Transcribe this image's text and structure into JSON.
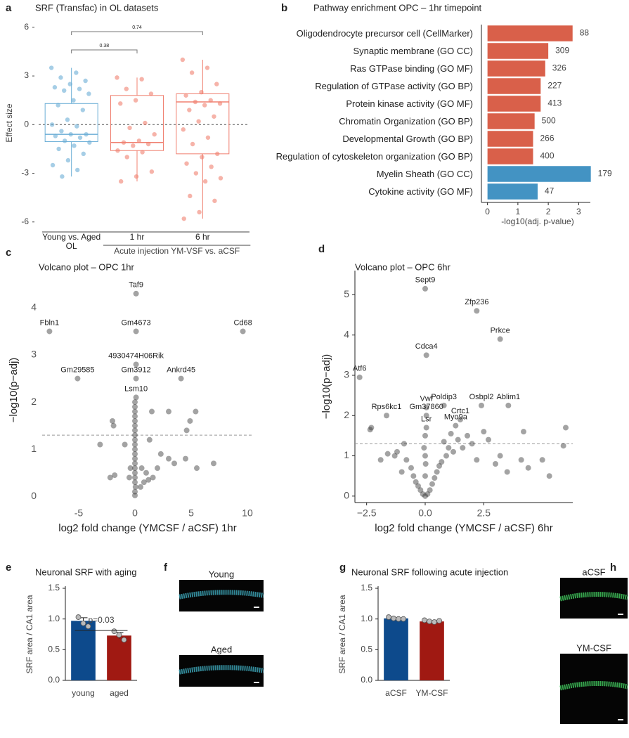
{
  "chart_data": [
    {
      "panel": "a",
      "type": "box",
      "title": "SRF (Transfac) in OL datasets",
      "ylabel": "Effect size",
      "categories": [
        "Young vs. Aged OL",
        "1 hr",
        "6 hr"
      ],
      "group_label": "Acute injection YM-VSF vs. aCSF",
      "group": [
        1,
        2
      ],
      "colors": [
        "#6baed6",
        "#f08070",
        "#f08070"
      ],
      "boxes": [
        {
          "whislo": -3.2,
          "q1": -1.05,
          "med": -0.6,
          "q3": 1.3,
          "whishi": 3.5
        },
        {
          "whislo": -3.5,
          "q1": -1.6,
          "med": -1.1,
          "q3": 1.8,
          "whishi": 2.9
        },
        {
          "whislo": -5.8,
          "q1": -1.8,
          "med": 1.4,
          "q3": 1.9,
          "whishi": 4.0
        }
      ],
      "points": [
        [
          3.5,
          3.2,
          2.9,
          2.7,
          2.5,
          2.3,
          2.2,
          2.1,
          1.9,
          1.5,
          1.2,
          0.9,
          0.3,
          0,
          -0.1,
          -0.4,
          -0.6,
          -0.6,
          -0.7,
          -0.8,
          -1.0,
          -1.1,
          -1.3,
          -1.5,
          -1.8,
          -2.2,
          -2.5,
          -2.8,
          -3.2
        ],
        [
          2.9,
          2.8,
          2.2,
          1.9,
          1.5,
          1.3,
          0.1,
          -0.2,
          -0.6,
          -1.0,
          -1.1,
          -1.2,
          -1.3,
          -1.6,
          -1.7,
          -2.0,
          -2.9,
          -3.2,
          -3.5
        ],
        [
          4.0,
          3.5,
          3.2,
          2.5,
          2.0,
          1.8,
          1.5,
          1.4,
          1.3,
          1.2,
          0.9,
          0.5,
          0.2,
          -0.3,
          -0.8,
          -1.2,
          -1.8,
          -2.0,
          -2.4,
          -2.6,
          -3.0,
          -3.3,
          -3.5,
          -4.4,
          -4.7,
          -5.4,
          -5.8
        ]
      ],
      "reference_line": 0,
      "comparisons": [
        {
          "pair": [
            0,
            1
          ],
          "label": "0.38"
        },
        {
          "pair": [
            0,
            2
          ],
          "label": "0.74"
        }
      ],
      "ylim": [
        -6.4,
        6.6
      ],
      "yticks": [
        -6,
        -3,
        0,
        3,
        6
      ]
    },
    {
      "panel": "b",
      "type": "hbar",
      "title": "Pathway enrichment OPC – 1hr timepoint",
      "xlabel": "-log10(adj. p-value)",
      "categories": [
        "Oligodendrocyte precursor cell (CellMarker)",
        "Synaptic membrane (GO CC)",
        "Ras GTPase binding (GO MF)",
        "Regulation of GTPase activity (GO BP)",
        "Protein kinase activity (GO MF)",
        "Chromatin Organization (GO BP)",
        "Developmental Growth (GO BP)",
        "Regulation of cytoskeleton organization (GO BP)",
        "Myelin Sheath (GO CC)",
        "Cytokine activity (GO MF)"
      ],
      "values": [
        2.8,
        2.0,
        1.9,
        1.75,
        1.75,
        1.55,
        1.5,
        1.5,
        3.4,
        1.65
      ],
      "counts": [
        88,
        309,
        326,
        227,
        413,
        500,
        266,
        400,
        179,
        47
      ],
      "colors": [
        "#d9604a",
        "#d9604a",
        "#d9604a",
        "#d9604a",
        "#d9604a",
        "#d9604a",
        "#d9604a",
        "#d9604a",
        "#4393c3",
        "#4393c3"
      ],
      "xlim": [
        -0.2,
        3.5
      ],
      "xticks": [
        0,
        1,
        2,
        3
      ]
    },
    {
      "panel": "c",
      "type": "scatter",
      "title": "Volcano plot – OPC 1hr",
      "xlabel": "log2 fold change (YMCSF / aCSF) 1hr",
      "ylabel": "−log10(p−adj)",
      "x": [
        0.1,
        -7.6,
        0.1,
        9.6,
        0.1,
        0.1,
        -5.1,
        4.1,
        0.1,
        0,
        0,
        0,
        0,
        0,
        0,
        0,
        0,
        0,
        0,
        0,
        0,
        0,
        0,
        0,
        0,
        0,
        0,
        0.05,
        0,
        0,
        5.4,
        4.9,
        3.0,
        1.5,
        4.6,
        -2.0,
        -1.9,
        -2.2,
        -3.1,
        -0.9,
        1.3,
        2.3,
        3.0,
        3.5,
        4.5,
        2.0,
        1.0,
        1.6,
        0.8,
        0.5,
        1.2,
        0.6,
        -0.5,
        -0.4,
        7.0,
        5.5,
        -1.8
      ],
      "y": [
        4.3,
        3.5,
        3.5,
        3.5,
        2.8,
        2.5,
        2.5,
        2.5,
        2.1,
        2.0,
        1.9,
        1.8,
        1.7,
        1.6,
        1.5,
        1.4,
        1.3,
        1.2,
        1.1,
        1.0,
        0.9,
        0.8,
        0.7,
        0.6,
        0.5,
        0.4,
        0.3,
        0.2,
        0.1,
        0.02,
        1.8,
        1.6,
        1.8,
        1.8,
        1.4,
        1.6,
        1.5,
        0.4,
        1.1,
        1.1,
        1.2,
        0.9,
        0.8,
        0.7,
        0.8,
        0.6,
        0.5,
        0.4,
        0.3,
        0.2,
        0.35,
        0.6,
        0.4,
        0.6,
        0.7,
        0.6,
        0.45
      ],
      "point_labels": [
        "Taf9",
        "Fbln1",
        "Gm4673",
        "Cd68",
        "4930474H06Rik",
        "Gm3912",
        "Gm29585",
        "Ankrd45",
        "Lsm10",
        null,
        null,
        null,
        null,
        null,
        null,
        null,
        null,
        null,
        null,
        null,
        null,
        null,
        null,
        null,
        null,
        null,
        null,
        null,
        null,
        null,
        null,
        null,
        null,
        null,
        null,
        null,
        null,
        null,
        null,
        null,
        null,
        null,
        null,
        null,
        null,
        null,
        null,
        null,
        null,
        null,
        null,
        null,
        null,
        null,
        null,
        null,
        null
      ],
      "threshold": 1.3,
      "axis_lines": false,
      "xlim": [
        -8.25,
        10.5
      ],
      "ylim": [
        -0.13,
        4.64
      ],
      "xticks": [
        -5,
        0,
        5,
        10
      ],
      "yticks": [
        0,
        1,
        2,
        3,
        4
      ]
    },
    {
      "panel": "d",
      "type": "scatter",
      "title": "Volcano plot – OPC 6hr",
      "xlabel": "log2 fold change (YMCSF / aCSF) 6hr",
      "ylabel": "−log10(p−adj)",
      "x": [
        0,
        2.2,
        3.2,
        0.05,
        -2.8,
        2.4,
        0.8,
        0.05,
        -1.65,
        0.05,
        1.5,
        3.55,
        0.05,
        1.3,
        -2.35,
        -2.3,
        -1.6,
        -1.2,
        -0.9,
        -0.8,
        -0.6,
        -0.5,
        -0.4,
        -0.3,
        -0.2,
        -0.1,
        0,
        0.1,
        0.2,
        0.3,
        0.4,
        0.5,
        0.6,
        0.7,
        0.9,
        1.0,
        1.2,
        1.4,
        1.6,
        1.8,
        2.0,
        2.2,
        2.5,
        2.7,
        3.0,
        3.2,
        3.5,
        4.1,
        4.4,
        5.0,
        5.3,
        6.0,
        5.9,
        4.2,
        0,
        0,
        0,
        -0.05,
        0.02,
        -1.0,
        -1.9,
        -1.3,
        0.8,
        1.1
      ],
      "y": [
        5.15,
        4.6,
        3.9,
        3.5,
        2.95,
        2.25,
        2.25,
        2.2,
        2.0,
        2.0,
        1.9,
        2.25,
        1.7,
        1.75,
        1.65,
        1.7,
        1.05,
        1.1,
        1.3,
        0.9,
        0.7,
        0.5,
        0.35,
        0.25,
        0.15,
        0.05,
        0,
        0.05,
        0.15,
        0.3,
        0.45,
        0.6,
        0.75,
        0.85,
        1.0,
        1.2,
        1.1,
        1.4,
        1.2,
        1.5,
        1.3,
        0.9,
        1.6,
        1.4,
        0.8,
        1.0,
        0.6,
        0.9,
        0.7,
        0.9,
        0.5,
        1.7,
        1.25,
        1.6,
        0.5,
        1.0,
        1.5,
        1.2,
        0.8,
        0.6,
        0.9,
        1.0,
        1.35,
        1.55
      ],
      "point_labels": [
        "Sept9",
        "Zfp236",
        "Prkce",
        "Cdca4",
        "Atf6",
        "Osbpl2",
        "Poldip3",
        "Vwf",
        "Rps6kc1",
        "Gm37860",
        "Crtc1",
        "Ablim1",
        "Lsr",
        "Myo9a",
        null,
        null,
        null,
        null,
        null,
        null,
        null,
        null,
        null,
        null,
        null,
        null,
        null,
        null,
        null,
        null,
        null,
        null,
        null,
        null,
        null,
        null,
        null,
        null,
        null,
        null,
        null,
        null,
        null,
        null,
        null,
        null,
        null,
        null,
        null,
        null,
        null,
        null,
        null,
        null,
        null,
        null,
        null,
        null,
        null,
        null,
        null,
        null,
        null,
        null
      ],
      "threshold": 1.3,
      "axis_lines": true,
      "xlim": [
        -3.0,
        6.3
      ],
      "ylim": [
        -0.16,
        5.6
      ],
      "xticks": [
        {
          "value": -2.5,
          "label": "−2.5"
        },
        {
          "value": 0,
          "label": "0.0"
        },
        {
          "value": 2.5,
          "label": "2.5"
        }
      ],
      "yticks": [
        0,
        1,
        2,
        3,
        4,
        5
      ]
    },
    {
      "panel": "e",
      "type": "bar",
      "title": "Neuronal SRF with aging",
      "ylabel": "SRF area / CA1 area",
      "categories": [
        "young",
        "aged"
      ],
      "values": [
        0.97,
        0.73
      ],
      "errors": [
        0.05,
        0.05
      ],
      "points": [
        [
          1.03,
          0.93,
          0.88
        ],
        [
          0.8,
          0.74,
          0.66
        ]
      ],
      "colors": [
        "#0d4a8c",
        "#a01912"
      ],
      "annotation": "p=0.03",
      "ylim": [
        0,
        1.5
      ],
      "yticks": [
        {
          "value": 0,
          "label": "0.0"
        },
        {
          "value": 0.5,
          "label": "0.5"
        },
        {
          "value": 1.0,
          "label": "1.0"
        },
        {
          "value": 1.5,
          "label": "1.5"
        }
      ]
    },
    {
      "panel": "g",
      "type": "bar",
      "title": "Neuronal SRF following acute injection",
      "ylabel": "SRF area / CA1 area",
      "categories": [
        "aCSF",
        "YM-CSF"
      ],
      "values": [
        1.01,
        0.96
      ],
      "errors": [
        0.01,
        0.01
      ],
      "points": [
        [
          1.03,
          1.01,
          1.0,
          1.0
        ],
        [
          0.98,
          0.96,
          0.95,
          0.97
        ]
      ],
      "colors": [
        "#0d4a8c",
        "#a01912"
      ],
      "ylim": [
        0,
        1.5
      ],
      "yticks": [
        {
          "value": 0,
          "label": "0.0"
        },
        {
          "value": 0.5,
          "label": "0.5"
        },
        {
          "value": 1.0,
          "label": "1.0"
        },
        {
          "value": 1.5,
          "label": "1.5"
        }
      ]
    }
  ],
  "images": [
    {
      "panel": "f",
      "labels": [
        "Young",
        "Aged"
      ]
    },
    {
      "panel": "h",
      "labels": [
        "aCSF",
        "YM-CSF"
      ]
    }
  ]
}
